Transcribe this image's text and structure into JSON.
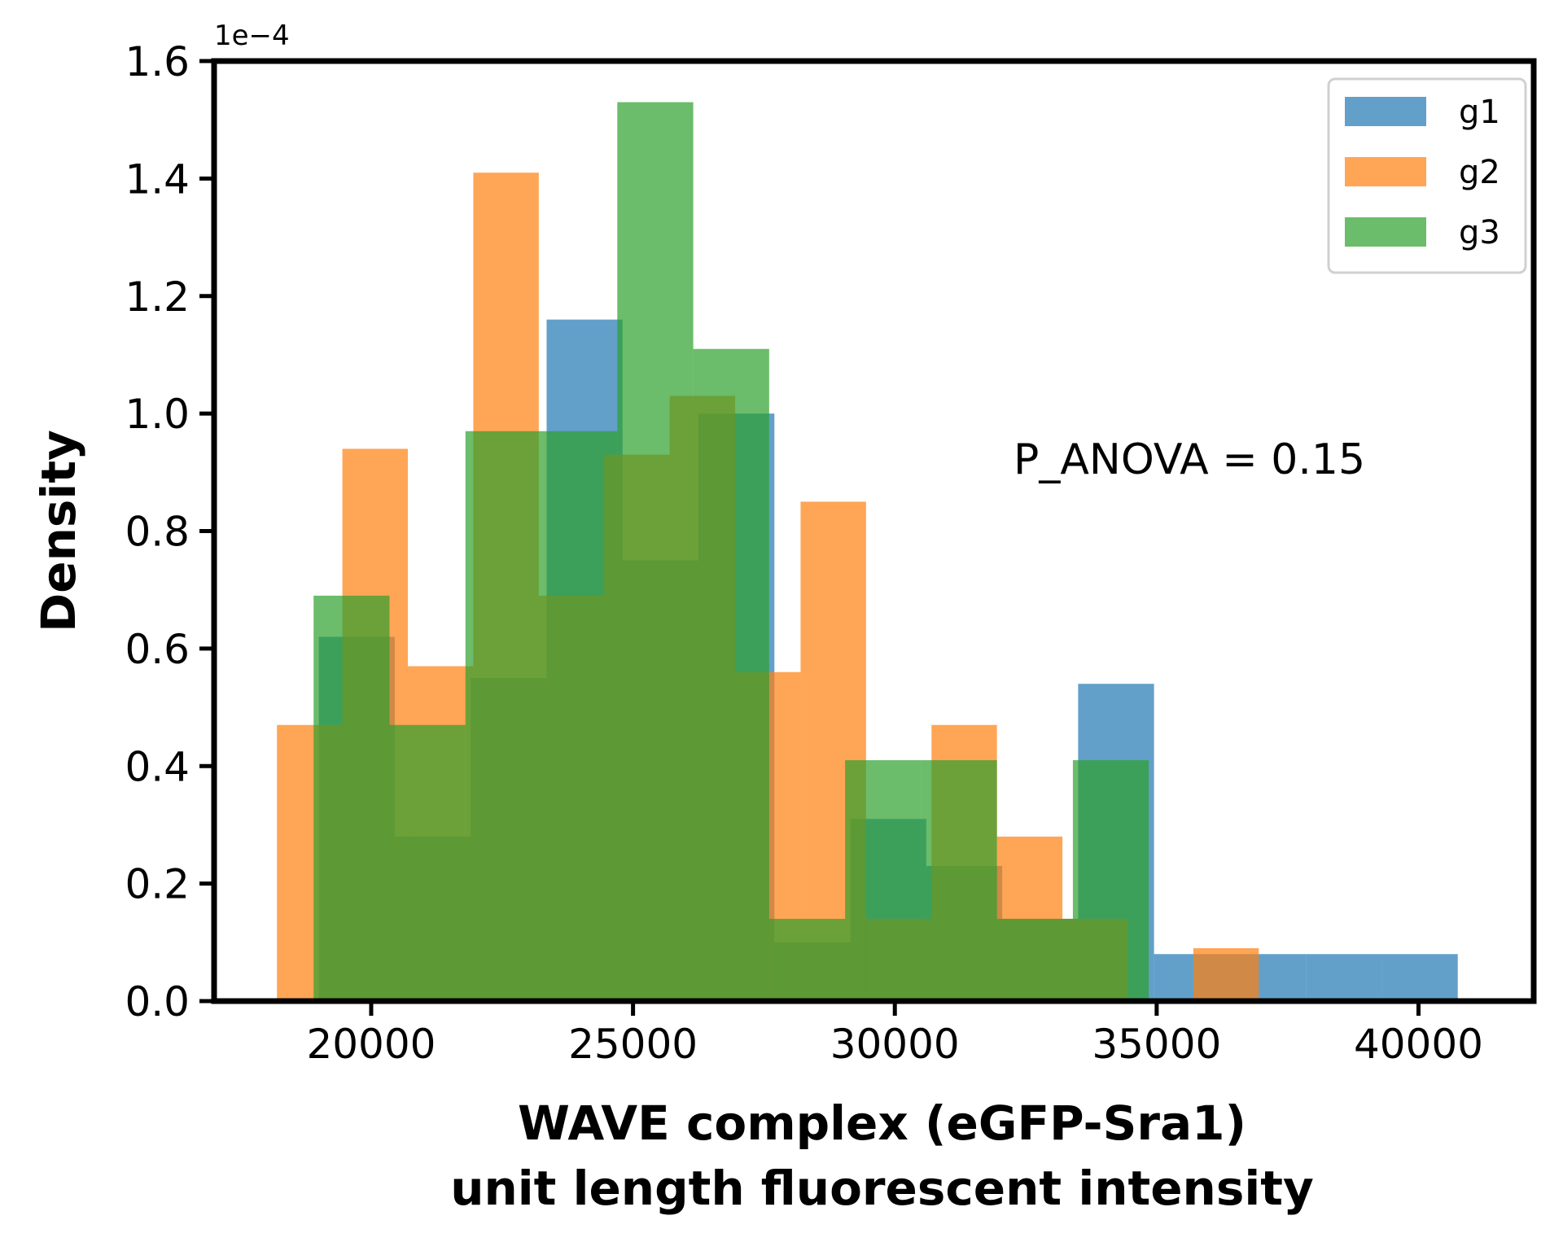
{
  "chart_data": {
    "type": "bar",
    "subtype": "overlaid-histogram",
    "xlabel_line1": "WAVE complex (eGFP-Sra1)",
    "xlabel_line2": "unit length fluorescent intensity",
    "ylabel": "Density",
    "y_offset_label": "1e−4",
    "y_scale": 0.0001,
    "xlim": [
      17000,
      42200
    ],
    "ylim": [
      0,
      1.6
    ],
    "xticks": [
      20000,
      25000,
      30000,
      35000,
      40000
    ],
    "xtick_labels": [
      "20000",
      "25000",
      "30000",
      "35000",
      "40000"
    ],
    "yticks": [
      0.0,
      0.2,
      0.4,
      0.6,
      0.8,
      1.0,
      1.2,
      1.4,
      1.6
    ],
    "ytick_labels": [
      "0.0",
      "0.2",
      "0.4",
      "0.6",
      "0.8",
      "1.0",
      "1.2",
      "1.4",
      "1.6"
    ],
    "grid": false,
    "legend_position": "top-right",
    "annotation": "P_ANOVA = 0.15",
    "bar_alpha": 0.7,
    "series": [
      {
        "name": "g1",
        "color": "#1f77b4",
        "edges": [
          19000,
          20450,
          21900,
          23350,
          24800,
          26250,
          27700,
          29150,
          30600,
          32050,
          33500,
          34950,
          36400,
          37850,
          39300,
          40750
        ],
        "values": [
          0.62,
          0.28,
          0.55,
          1.16,
          0.75,
          1.0,
          0.1,
          0.31,
          0.23,
          0.14,
          0.54,
          0.08,
          0.08,
          0.08,
          0.08
        ]
      },
      {
        "name": "g2",
        "color": "#ff7f0e",
        "edges": [
          18200,
          19450,
          20700,
          21950,
          23200,
          24450,
          25700,
          26950,
          28200,
          29450,
          30700,
          31950,
          33200,
          34450,
          35700,
          36950
        ],
        "values": [
          0.47,
          0.94,
          0.57,
          1.41,
          0.69,
          0.93,
          1.03,
          0.56,
          0.85,
          0.14,
          0.47,
          0.28,
          0.14,
          0.0,
          0.09
        ]
      },
      {
        "name": "g3",
        "color": "#2ca02c",
        "edges": [
          18900,
          20350,
          21800,
          23250,
          24700,
          26150,
          27600,
          29050,
          30500,
          31950,
          33400,
          34850
        ],
        "values": [
          0.69,
          0.47,
          0.97,
          0.97,
          1.53,
          1.11,
          0.14,
          0.41,
          0.41,
          0.14,
          0.41
        ]
      }
    ]
  }
}
